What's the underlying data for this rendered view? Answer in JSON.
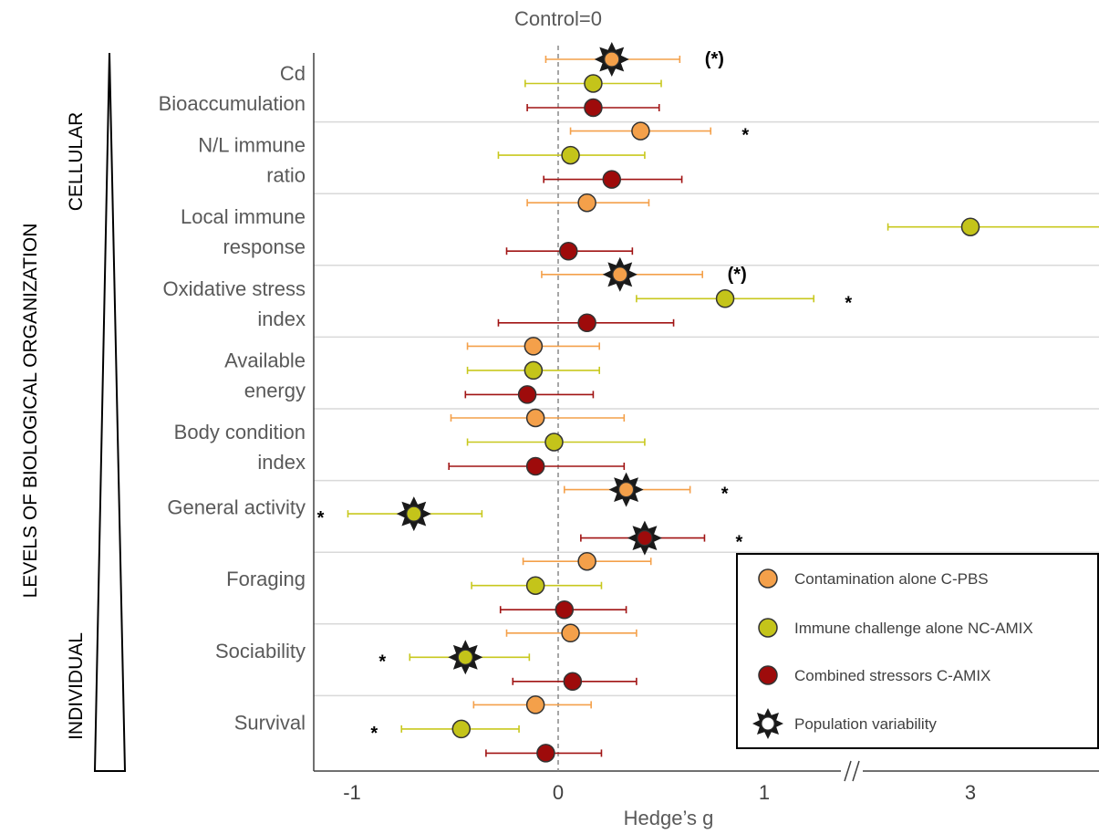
{
  "chart_data": {
    "type": "forest",
    "title": "Control=0",
    "xlabel": "Hedge’s g",
    "side_axis_label": "LEVELS OF BIOLOGICAL ORGANIZATION",
    "level_top": "CELLULAR",
    "level_bottom": "INDIVIDUAL",
    "x_ticks": [
      "-1",
      "0",
      "1",
      "3"
    ],
    "x_axis_break_between": [
      "1",
      "3"
    ],
    "colors": {
      "c_pbs": "#F4A04A",
      "nc_amix": "#C4C41A",
      "c_amix": "#9E0B0B",
      "c_pbs_bar": "#F4A04A",
      "nc_amix_bar": "#C8C81E",
      "c_amix_bar": "#A11414"
    },
    "series": [
      {
        "key": "c_pbs",
        "name": "Contamination alone C-PBS"
      },
      {
        "key": "nc_amix",
        "name": "Immune challenge alone NC-AMIX"
      },
      {
        "key": "c_amix",
        "name": "Combined stressors C-AMIX"
      }
    ],
    "population_variability_label": "Population variability",
    "categories": [
      {
        "lines": [
          "Cd",
          "Bioaccumulation"
        ],
        "points": [
          {
            "series": "c_pbs",
            "g": 0.26,
            "lo": -0.06,
            "hi": 0.59,
            "pop": true,
            "sig": "(*)"
          },
          {
            "series": "nc_amix",
            "g": 0.17,
            "lo": -0.16,
            "hi": 0.5,
            "pop": false,
            "sig": ""
          },
          {
            "series": "c_amix",
            "g": 0.17,
            "lo": -0.15,
            "hi": 0.49,
            "pop": false,
            "sig": ""
          }
        ]
      },
      {
        "lines": [
          "N/L immune",
          "ratio"
        ],
        "points": [
          {
            "series": "c_pbs",
            "g": 0.4,
            "lo": 0.06,
            "hi": 0.74,
            "pop": false,
            "sig": "*"
          },
          {
            "series": "nc_amix",
            "g": 0.06,
            "lo": -0.29,
            "hi": 0.42,
            "pop": false,
            "sig": ""
          },
          {
            "series": "c_amix",
            "g": 0.26,
            "lo": -0.07,
            "hi": 0.6,
            "pop": false,
            "sig": ""
          }
        ]
      },
      {
        "lines": [
          "Local immune",
          "response"
        ],
        "points": [
          {
            "series": "c_pbs",
            "g": 0.14,
            "lo": -0.15,
            "hi": 0.44,
            "pop": false,
            "sig": ""
          },
          {
            "series": "nc_amix",
            "g": 3.0,
            "lo": 1.6,
            "hi": 4.44,
            "pop": false,
            "sig": "*"
          },
          {
            "series": "c_amix",
            "g": 0.05,
            "lo": -0.25,
            "hi": 0.36,
            "pop": false,
            "sig": ""
          }
        ]
      },
      {
        "lines": [
          "Oxidative stress",
          "index"
        ],
        "points": [
          {
            "series": "c_pbs",
            "g": 0.3,
            "lo": -0.08,
            "hi": 0.7,
            "pop": true,
            "sig": "(*)"
          },
          {
            "series": "nc_amix",
            "g": 0.81,
            "lo": 0.38,
            "hi": 1.24,
            "pop": false,
            "sig": "*"
          },
          {
            "series": "c_amix",
            "g": 0.14,
            "lo": -0.29,
            "hi": 0.56,
            "pop": false,
            "sig": ""
          }
        ]
      },
      {
        "lines": [
          "Available",
          "energy"
        ],
        "points": [
          {
            "series": "c_pbs",
            "g": -0.12,
            "lo": -0.44,
            "hi": 0.2,
            "pop": false,
            "sig": ""
          },
          {
            "series": "nc_amix",
            "g": -0.12,
            "lo": -0.44,
            "hi": 0.2,
            "pop": false,
            "sig": ""
          },
          {
            "series": "c_amix",
            "g": -0.15,
            "lo": -0.45,
            "hi": 0.17,
            "pop": false,
            "sig": ""
          }
        ]
      },
      {
        "lines": [
          "Body condition",
          "index"
        ],
        "points": [
          {
            "series": "c_pbs",
            "g": -0.11,
            "lo": -0.52,
            "hi": 0.32,
            "pop": false,
            "sig": ""
          },
          {
            "series": "nc_amix",
            "g": -0.02,
            "lo": -0.44,
            "hi": 0.42,
            "pop": false,
            "sig": ""
          },
          {
            "series": "c_amix",
            "g": -0.11,
            "lo": -0.53,
            "hi": 0.32,
            "pop": false,
            "sig": ""
          }
        ]
      },
      {
        "lines": [
          "General activity"
        ],
        "points": [
          {
            "series": "c_pbs",
            "g": 0.33,
            "lo": 0.03,
            "hi": 0.64,
            "pop": true,
            "sig": "*"
          },
          {
            "series": "nc_amix",
            "g": -0.7,
            "lo": -1.02,
            "hi": -0.37,
            "pop": true,
            "sig": "*"
          },
          {
            "series": "c_amix",
            "g": 0.42,
            "lo": 0.11,
            "hi": 0.71,
            "pop": true,
            "sig": "*"
          }
        ]
      },
      {
        "lines": [
          "Foraging"
        ],
        "points": [
          {
            "series": "c_pbs",
            "g": 0.14,
            "lo": -0.17,
            "hi": 0.45,
            "pop": false,
            "sig": ""
          },
          {
            "series": "nc_amix",
            "g": -0.11,
            "lo": -0.42,
            "hi": 0.21,
            "pop": false,
            "sig": ""
          },
          {
            "series": "c_amix",
            "g": 0.03,
            "lo": -0.28,
            "hi": 0.33,
            "pop": false,
            "sig": ""
          }
        ]
      },
      {
        "lines": [
          "Sociability"
        ],
        "points": [
          {
            "series": "c_pbs",
            "g": 0.06,
            "lo": -0.25,
            "hi": 0.38,
            "pop": false,
            "sig": ""
          },
          {
            "series": "nc_amix",
            "g": -0.45,
            "lo": -0.72,
            "hi": -0.14,
            "pop": true,
            "sig": "*"
          },
          {
            "series": "c_amix",
            "g": 0.07,
            "lo": -0.22,
            "hi": 0.38,
            "pop": false,
            "sig": ""
          }
        ]
      },
      {
        "lines": [
          "Survival"
        ],
        "points": [
          {
            "series": "c_pbs",
            "g": -0.11,
            "lo": -0.41,
            "hi": 0.16,
            "pop": false,
            "sig": ""
          },
          {
            "series": "nc_amix",
            "g": -0.47,
            "lo": -0.76,
            "hi": -0.19,
            "pop": false,
            "sig": "*"
          },
          {
            "series": "c_amix",
            "g": -0.06,
            "lo": -0.35,
            "hi": 0.21,
            "pop": false,
            "sig": ""
          }
        ]
      }
    ]
  }
}
